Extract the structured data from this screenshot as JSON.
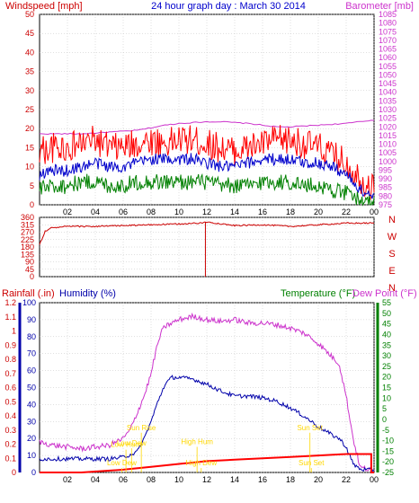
{
  "title": "24 hour graph day : March 30 2014",
  "colors": {
    "windspeed": "#ff0000",
    "wind_avg": "#0000cc",
    "wind_low": "#008000",
    "barometer": "#cc33cc",
    "direction": "#cc0000",
    "rainfall": "#ff0000",
    "humidity": "#0000aa",
    "temperature": "#008000",
    "dewpoint": "#cc33cc",
    "annotation": "#ffd700",
    "axis": "#000000",
    "background": "#ffffff"
  },
  "chart_data": [
    {
      "type": "line",
      "name": "wind-barometer",
      "ylabel": "Windspeed [mph]",
      "y2label": "Barometer [mb]",
      "ylim": [
        0,
        50
      ],
      "y2lim": [
        975,
        1085
      ],
      "yticks": [
        0,
        5,
        10,
        15,
        20,
        25,
        30,
        35,
        40,
        45,
        50
      ],
      "y2ticks": [
        975,
        980,
        985,
        990,
        995,
        1000,
        1005,
        1010,
        1015,
        1020,
        1025,
        1030,
        1035,
        1040,
        1045,
        1050,
        1055,
        1060,
        1065,
        1070,
        1075,
        1080,
        1085
      ],
      "xticks": [
        "02",
        "04",
        "06",
        "08",
        "10",
        "12",
        "14",
        "16",
        "18",
        "20",
        "22",
        "00"
      ],
      "grid": true,
      "series": [
        {
          "axis": "y2",
          "color_key": "barometer",
          "x": [
            0,
            1,
            2,
            3,
            4,
            5,
            6,
            7,
            8,
            9,
            10,
            11,
            12,
            13,
            14,
            15,
            16,
            17,
            18,
            19,
            20,
            21,
            22,
            23,
            24
          ],
          "values": [
            1016,
            1016,
            1016,
            1016,
            1016.5,
            1017,
            1017.5,
            1018,
            1019.5,
            1021,
            1022,
            1022.5,
            1023,
            1023,
            1022.5,
            1022,
            1021,
            1020,
            1020,
            1020.5,
            1021,
            1021.5,
            1022,
            1023,
            1024
          ]
        },
        {
          "axis": "y",
          "color_key": "windspeed",
          "x": [
            0,
            1,
            2,
            3,
            4,
            5,
            6,
            7,
            8,
            9,
            10,
            11,
            12,
            13,
            14,
            15,
            16,
            17,
            18,
            19,
            20,
            21,
            22,
            23,
            24
          ],
          "values": [
            14,
            15,
            15,
            16,
            17,
            15,
            15,
            16,
            17,
            16,
            17,
            17,
            16,
            15,
            14,
            15,
            16,
            17,
            17,
            16,
            15,
            13,
            11,
            7,
            4
          ]
        },
        {
          "axis": "y",
          "color_key": "wind_avg",
          "x": [
            0,
            1,
            2,
            3,
            4,
            5,
            6,
            7,
            8,
            9,
            10,
            11,
            12,
            13,
            14,
            15,
            16,
            17,
            18,
            19,
            20,
            21,
            22,
            23,
            24
          ],
          "values": [
            8,
            9,
            9,
            10,
            11,
            10,
            10,
            11,
            12,
            12,
            12,
            12,
            11,
            10,
            10,
            11,
            12,
            12,
            12,
            11,
            11,
            10,
            8,
            4,
            2
          ]
        },
        {
          "axis": "y",
          "color_key": "wind_low",
          "x": [
            0,
            1,
            2,
            3,
            4,
            5,
            6,
            7,
            8,
            9,
            10,
            11,
            12,
            13,
            14,
            15,
            16,
            17,
            18,
            19,
            20,
            21,
            22,
            23,
            24
          ],
          "values": [
            4,
            5,
            5,
            6,
            6,
            5,
            5,
            6,
            6,
            6,
            6,
            6,
            6,
            5,
            5,
            5,
            6,
            6,
            6,
            5,
            5,
            4,
            3,
            1,
            0
          ]
        }
      ]
    },
    {
      "type": "line",
      "name": "wind-direction",
      "ylim": [
        0,
        360
      ],
      "yticks": [
        0,
        45,
        90,
        135,
        180,
        225,
        270,
        315,
        360
      ],
      "y2ticks": [
        "N",
        "W",
        "S",
        "E",
        "N"
      ],
      "grid": true,
      "series": [
        {
          "color_key": "direction",
          "x": [
            0,
            0.4,
            0.8,
            2,
            4,
            6,
            8,
            10,
            11.5,
            11.9,
            12.2,
            14,
            16,
            18,
            20,
            21,
            22,
            23,
            24
          ],
          "values": [
            195,
            275,
            295,
            305,
            305,
            310,
            315,
            320,
            325,
            330,
            330,
            310,
            315,
            305,
            315,
            320,
            325,
            325,
            325
          ]
        }
      ],
      "spike": {
        "x": 11.9,
        "from": 0,
        "to": 330
      }
    },
    {
      "type": "line",
      "name": "rain-humidity-temperature",
      "ylabel_left": "Rainfall (.in)",
      "ylabel_second": "Humidity (%)",
      "y2label": "Temperature (°F)",
      "y3label": "Dew Point (°F)",
      "rain_ylim": [
        0,
        1.2
      ],
      "rain_yticks": [
        "0",
        "0.1",
        "0.2",
        "0.3",
        "0.4",
        "0.5",
        "0.6",
        "0.7",
        "0.8",
        "0.9",
        "1",
        "1.1",
        "1.2"
      ],
      "humidity_ylim": [
        0,
        100
      ],
      "humidity_yticks": [
        0,
        10,
        20,
        30,
        40,
        50,
        60,
        70,
        80,
        90,
        100
      ],
      "temp_ylim": [
        -25,
        55
      ],
      "temp_yticks": [
        -25,
        -20,
        -15,
        -10,
        -5,
        0,
        5,
        10,
        15,
        20,
        25,
        30,
        35,
        40,
        45,
        50,
        55
      ],
      "xticks": [
        "02",
        "04",
        "06",
        "08",
        "10",
        "12",
        "14",
        "16",
        "18",
        "20",
        "22",
        "00"
      ],
      "grid": true,
      "series": [
        {
          "axis": "humidity",
          "color_key": "dewpoint",
          "x": [
            0,
            1,
            2,
            3,
            4,
            5,
            5.5,
            6,
            6.5,
            7,
            7.5,
            8,
            8.3,
            8.7,
            9,
            10,
            11,
            12,
            13,
            14,
            15,
            16,
            17,
            18,
            19,
            20,
            21,
            21.5,
            22,
            22.5,
            23,
            23.5,
            24
          ],
          "values": [
            18,
            16,
            15,
            14,
            15,
            16,
            18,
            20,
            25,
            35,
            45,
            58,
            70,
            82,
            86,
            90,
            92,
            90,
            89,
            90,
            88,
            88,
            87,
            85,
            82,
            76,
            68,
            64,
            45,
            20,
            3,
            2,
            1
          ]
        },
        {
          "axis": "humidity",
          "color_key": "humidity",
          "x": [
            0,
            4,
            5,
            6,
            7,
            7.5,
            8,
            8.5,
            9,
            9.5,
            10,
            11,
            12,
            13,
            14,
            15,
            16,
            17,
            18,
            19,
            20,
            21,
            21.5,
            22,
            22.5,
            23,
            24
          ],
          "values": [
            8,
            8,
            8,
            9,
            12,
            20,
            30,
            42,
            52,
            56,
            56,
            55,
            52,
            48,
            45,
            45,
            44,
            42,
            38,
            33,
            27,
            22,
            20,
            15,
            5,
            2,
            1
          ]
        },
        {
          "axis": "rain",
          "color_key": "rainfall",
          "x": [
            0,
            3,
            6,
            8,
            10,
            12,
            14,
            16,
            18,
            20,
            22,
            23.8,
            23.8,
            24
          ],
          "values": [
            0,
            0,
            0.02,
            0.04,
            0.06,
            0.08,
            0.09,
            0.1,
            0.11,
            0.12,
            0.13,
            0.13,
            0,
            0
          ]
        }
      ],
      "annotations": [
        {
          "label": "Low Hum",
          "x": 6.2,
          "y_label": 0.18
        },
        {
          "label": "Low Dew",
          "x": 6.6,
          "y_label": 0.19
        },
        {
          "label": "Sun Rise",
          "x": 7.3,
          "y_label": 0.3
        },
        {
          "label": "High Hum",
          "x": 11.3,
          "y_label": 0.2
        },
        {
          "label": "High Dew",
          "x": 11.6,
          "y_label": 0.05
        },
        {
          "label": "Sun Set",
          "x": 19.4,
          "y_label": 0.3
        },
        {
          "label": "Sun Set",
          "x": 19.5,
          "y_label": 0.05
        },
        {
          "label": "Low Dew",
          "x": 5.9,
          "y_label": 0.05
        }
      ]
    }
  ]
}
